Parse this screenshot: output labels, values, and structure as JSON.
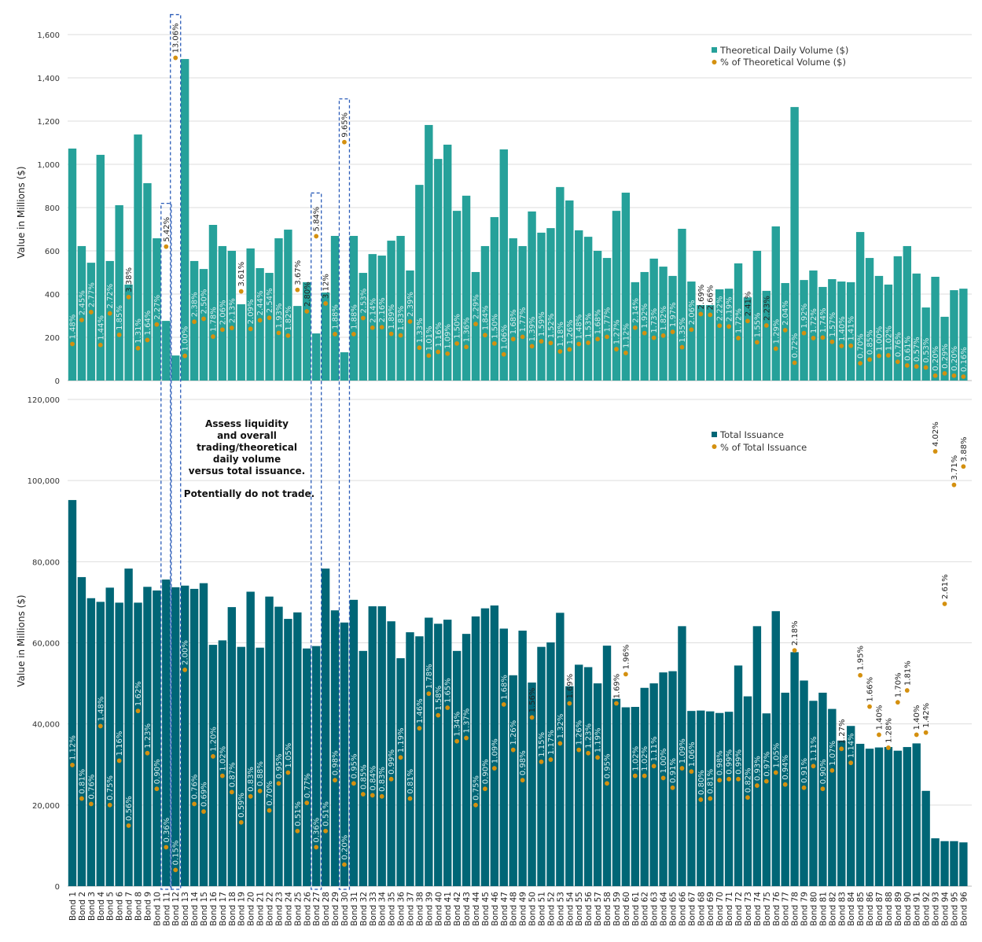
{
  "categories": [
    "Bond 1",
    "Bond 2",
    "Bond 3",
    "Bond 4",
    "Bond 5",
    "Bond 6",
    "Bond 7",
    "Bond 8",
    "Bond 9",
    "Bond 10",
    "Bond 11",
    "Bond 12",
    "Bond 13",
    "Bond 14",
    "Bond 15",
    "Bond 16",
    "Bond 17",
    "Bond 18",
    "Bond 19",
    "Bond 20",
    "Bond 21",
    "Bond 22",
    "Bond 23",
    "Bond 24",
    "Bond 25",
    "Bond 26",
    "Bond 27",
    "Bond 28",
    "Bond 29",
    "Bond 30",
    "Bond 31",
    "Bond 32",
    "Bond 33",
    "Bond 34",
    "Bond 35",
    "Bond 36",
    "Bond 37",
    "Bond 38",
    "Bond 39",
    "Bond 40",
    "Bond 41",
    "Bond 42",
    "Bond 43",
    "Bond 44",
    "Bond 45",
    "Bond 46",
    "Bond 47",
    "Bond 48",
    "Bond 49",
    "Bond 50",
    "Bond 51",
    "Bond 52",
    "Bond 53",
    "Bond 54",
    "Bond 55",
    "Bond 56",
    "Bond 57",
    "Bond 58",
    "Bond 59",
    "Bond 60",
    "Bond 61",
    "Bond 62",
    "Bond 63",
    "Bond 64",
    "Bond 65",
    "Bond 66",
    "Bond 67",
    "Bond 68",
    "Bond 69",
    "Bond 70",
    "Bond 71",
    "Bond 72",
    "Bond 73",
    "Bond 74",
    "Bond 75",
    "Bond 76",
    "Bond 77",
    "Bond 78",
    "Bond 79",
    "Bond 80",
    "Bond 81",
    "Bond 82",
    "Bond 83",
    "Bond 84",
    "Bond 85",
    "Bond 86",
    "Bond 87",
    "Bond 88",
    "Bond 89",
    "Bond 90",
    "Bond 91",
    "Bond 92",
    "Bond 93",
    "Bond 94",
    "Bond 95",
    "Bond 96"
  ],
  "annotation": {
    "lines": [
      "Assess liquidity",
      "and overall",
      "trading/theoretical",
      "daily volume",
      "versus total issuance."
    ],
    "action": "Potentially do not trade.",
    "highlighted_bonds": [
      "Bond 11",
      "Bond 12",
      "Bond 27",
      "Bond 30"
    ],
    "box_color": "#2a5bb8"
  },
  "chart_data": [
    {
      "type": "bar",
      "ylabel": "Value in Millions ($)",
      "ylim": [
        0,
        1600
      ],
      "yticks": [
        "0",
        "200",
        "400",
        "600",
        "800",
        "1,000",
        "1,200",
        "1,400",
        "1,600"
      ],
      "secondary_ylim_pct": [
        0,
        14
      ],
      "grid": true,
      "legend_position": "top-right",
      "bar_color": "#26a19a",
      "dot_color": "#d4900f",
      "series": [
        {
          "name": "Theoretical Daily Volume ($)",
          "kind": "bar",
          "values": [
            1073,
            622,
            545,
            1044,
            553,
            811,
            444,
            1138,
            913,
            658,
            276,
            116,
            1487,
            553,
            516,
            720,
            622,
            600,
            353,
            611,
            520,
            498,
            658,
            698,
            345,
            455,
            218,
            407,
            669,
            131,
            669,
            498,
            585,
            578,
            647,
            669,
            509,
            905,
            1182,
            1025,
            1091,
            785,
            855,
            502,
            622,
            756,
            1069,
            658,
            622,
            782,
            684,
            705,
            895,
            833,
            695,
            665,
            600,
            567,
            785,
            869,
            455,
            502,
            564,
            527,
            484,
            702,
            458,
            349,
            349,
            422,
            425,
            542,
            385,
            600,
            415,
            713,
            451,
            1265,
            465,
            509,
            433,
            469,
            458,
            455,
            687,
            567,
            484,
            444,
            575,
            622,
            495,
            338,
            480,
            295,
            418,
            425
          ]
        },
        {
          "name": "% of Theoretical Volume ($)",
          "kind": "dot",
          "values": [
            1.48,
            2.45,
            2.77,
            1.44,
            2.72,
            1.85,
            3.38,
            1.31,
            1.64,
            2.27,
            5.42,
            13.06,
            1.0,
            2.38,
            2.5,
            1.78,
            2.06,
            2.13,
            3.61,
            2.09,
            2.44,
            2.54,
            1.93,
            1.82,
            3.67,
            2.8,
            5.84,
            3.12,
            1.88,
            9.65,
            1.88,
            2.53,
            2.14,
            2.16,
            1.89,
            1.83,
            2.39,
            1.33,
            1.01,
            1.16,
            1.09,
            1.5,
            1.36,
            2.29,
            1.84,
            1.5,
            1.06,
            1.68,
            1.77,
            1.39,
            1.59,
            1.52,
            1.18,
            1.26,
            1.48,
            1.53,
            1.68,
            1.77,
            1.27,
            1.12,
            2.14,
            1.92,
            1.73,
            1.82,
            1.97,
            1.35,
            2.06,
            2.69,
            2.66,
            2.22,
            2.19,
            1.72,
            2.41,
            1.55,
            2.23,
            1.29,
            2.04,
            0.72,
            1.92,
            1.72,
            1.74,
            1.57,
            1.4,
            1.41,
            0.7,
            0.85,
            1.0,
            1.02,
            0.76,
            0.61,
            0.57,
            0.53,
            0.2,
            0.29,
            0.2,
            0.16
          ],
          "labels": [
            "1.48%",
            "2.45%",
            "2.77%",
            "1.44%",
            "2.72%",
            "1.85%",
            "3.38%",
            "1.31%",
            "1.64%",
            "2.27%",
            "5.42%",
            "13.06%",
            "1.00%",
            "2.38%",
            "2.50%",
            "1.78%",
            "2.06%",
            "2.13%",
            "3.61%",
            "2.09%",
            "2.44%",
            "2.54%",
            "1.93%",
            "1.82%",
            "3.67%",
            "2.80%",
            "5.84%",
            "3.12%",
            "1.88%",
            "9.65%",
            "1.88%",
            "2.53%",
            "2.14%",
            "2.16%",
            "1.89%",
            "1.83%",
            "2.39%",
            "1.33%",
            "1.01%",
            "1.16%",
            "1.09%",
            "1.50%",
            "1.36%",
            "2.29%",
            "1.84%",
            "1.50%",
            "1.06%",
            "1.68%",
            "1.77%",
            "1.39%",
            "1.59%",
            "1.52%",
            "1.18%",
            "1.26%",
            "1.48%",
            "1.53%",
            "1.68%",
            "1.77%",
            "1.27%",
            "1.12%",
            "2.14%",
            "1.92%",
            "1.73%",
            "1.82%",
            "1.97%",
            "1.35%",
            "2.06%",
            "2.69%",
            "2.66%",
            "2.22%",
            "2.19%",
            "1.72%",
            "2.41%",
            "1.55%",
            "2.23%",
            "1.29%",
            "2.04%",
            "0.72%",
            "1.92%",
            "1.72%",
            "1.74%",
            "1.57%",
            "1.40%",
            "1.41%",
            "0.70%",
            "0.85%",
            "1.00%",
            "1.02%",
            "0.76%",
            "0.61%",
            "0.57%",
            "0.53%",
            "0.20%",
            "0.29%",
            "0.20%",
            "0.16%"
          ]
        }
      ]
    },
    {
      "type": "bar",
      "ylabel": "Value in Millions ($)",
      "ylim": [
        0,
        120000
      ],
      "yticks": [
        "0",
        "20,000",
        "40,000",
        "60,000",
        "80,000",
        "100,000",
        "120,000"
      ],
      "secondary_ylim_pct": [
        0,
        4.5
      ],
      "grid": true,
      "legend_position": "top-right",
      "bar_color": "#006676",
      "dot_color": "#d4900f",
      "series": [
        {
          "name": "Total Issuance",
          "kind": "bar",
          "values": [
            95200,
            76200,
            71000,
            70100,
            73600,
            69900,
            78300,
            69900,
            73800,
            72900,
            75600,
            73700,
            74100,
            73300,
            74700,
            59500,
            60600,
            68800,
            59000,
            72600,
            58800,
            71400,
            68900,
            65900,
            67500,
            58600,
            59200,
            78300,
            68000,
            65000,
            70600,
            58000,
            69000,
            69000,
            65300,
            56200,
            62600,
            61600,
            66200,
            64700,
            65700,
            58000,
            62200,
            66500,
            68500,
            69200,
            63500,
            52000,
            63000,
            50200,
            59000,
            60100,
            67400,
            49300,
            54600,
            54000,
            50000,
            59300,
            46200,
            44100,
            44200,
            48900,
            50000,
            52700,
            53000,
            64100,
            43200,
            43300,
            43100,
            42700,
            43000,
            54400,
            46800,
            64100,
            42600,
            67800,
            47700,
            57700,
            50700,
            45700,
            47700,
            43700,
            35900,
            39500,
            35100,
            33900,
            34200,
            34300,
            33400,
            34300,
            35200,
            23500,
            11800,
            11100,
            11100,
            10800
          ]
        },
        {
          "name": "% of Total Issuance",
          "kind": "dot",
          "values": [
            1.12,
            0.81,
            0.76,
            1.48,
            0.75,
            1.16,
            0.56,
            1.62,
            1.23,
            0.9,
            0.36,
            0.15,
            2.0,
            0.76,
            0.69,
            1.2,
            1.02,
            0.87,
            0.59,
            0.83,
            0.88,
            0.7,
            0.95,
            1.05,
            0.51,
            0.77,
            0.36,
            0.51,
            0.98,
            0.2,
            0.95,
            0.85,
            0.84,
            0.83,
            0.99,
            1.19,
            0.81,
            1.46,
            1.78,
            1.58,
            1.65,
            1.34,
            1.37,
            0.75,
            0.9,
            1.09,
            1.68,
            1.26,
            0.98,
            1.56,
            1.15,
            1.17,
            1.32,
            1.69,
            1.26,
            1.23,
            1.19,
            0.95,
            1.69,
            1.96,
            1.02,
            1.02,
            1.11,
            1.0,
            0.91,
            1.09,
            1.06,
            0.8,
            0.81,
            0.98,
            0.99,
            0.99,
            0.82,
            0.93,
            0.97,
            1.05,
            0.94,
            2.18,
            0.91,
            1.11,
            0.9,
            1.07,
            1.27,
            1.14,
            1.95,
            1.66,
            1.4,
            1.28,
            1.7,
            1.81,
            1.4,
            1.42,
            4.02,
            2.61,
            3.71,
            3.88
          ],
          "labels": [
            "1.12%",
            "0.81%",
            "0.76%",
            "1.48%",
            "0.75%",
            "1.16%",
            "0.56%",
            "1.62%",
            "1.23%",
            "0.90%",
            "0.36%",
            "0.15%",
            "2.00%",
            "0.76%",
            "0.69%",
            "1.20%",
            "1.02%",
            "0.87%",
            "0.59%",
            "0.83%",
            "0.88%",
            "0.70%",
            "0.95%",
            "1.05%",
            "0.51%",
            "0.77%",
            "0.36%",
            "0.51%",
            "0.98%",
            "0.20%",
            "0.95%",
            "0.85%",
            "0.84%",
            "0.83%",
            "0.99%",
            "1.19%",
            "0.81%",
            "1.46%",
            "1.78%",
            "1.58%",
            "1.65%",
            "1.34%",
            "1.37%",
            "0.75%",
            "0.90%",
            "1.09%",
            "1.68%",
            "1.26%",
            "0.98%",
            "1.56%",
            "1.15%",
            "1.17%",
            "1.32%",
            "1.69%",
            "1.26%",
            "1.23%",
            "1.19%",
            "0.95%",
            "1.69%",
            "1.96%",
            "1.02%",
            "1.02%",
            "1.11%",
            "1.00%",
            "0.91%",
            "1.09%",
            "1.06%",
            "0.80%",
            "0.81%",
            "0.98%",
            "0.99%",
            "0.99%",
            "0.82%",
            "0.93%",
            "0.97%",
            "1.05%",
            "0.94%",
            "2.18%",
            "0.91%",
            "1.11%",
            "0.90%",
            "1.07%",
            "1.27%",
            "1.14%",
            "1.95%",
            "1.66%",
            "1.40%",
            "1.28%",
            "1.70%",
            "1.81%",
            "1.40%",
            "1.42%",
            "4.02%",
            "2.61%",
            "3.71%",
            "3.88%"
          ]
        }
      ]
    }
  ]
}
